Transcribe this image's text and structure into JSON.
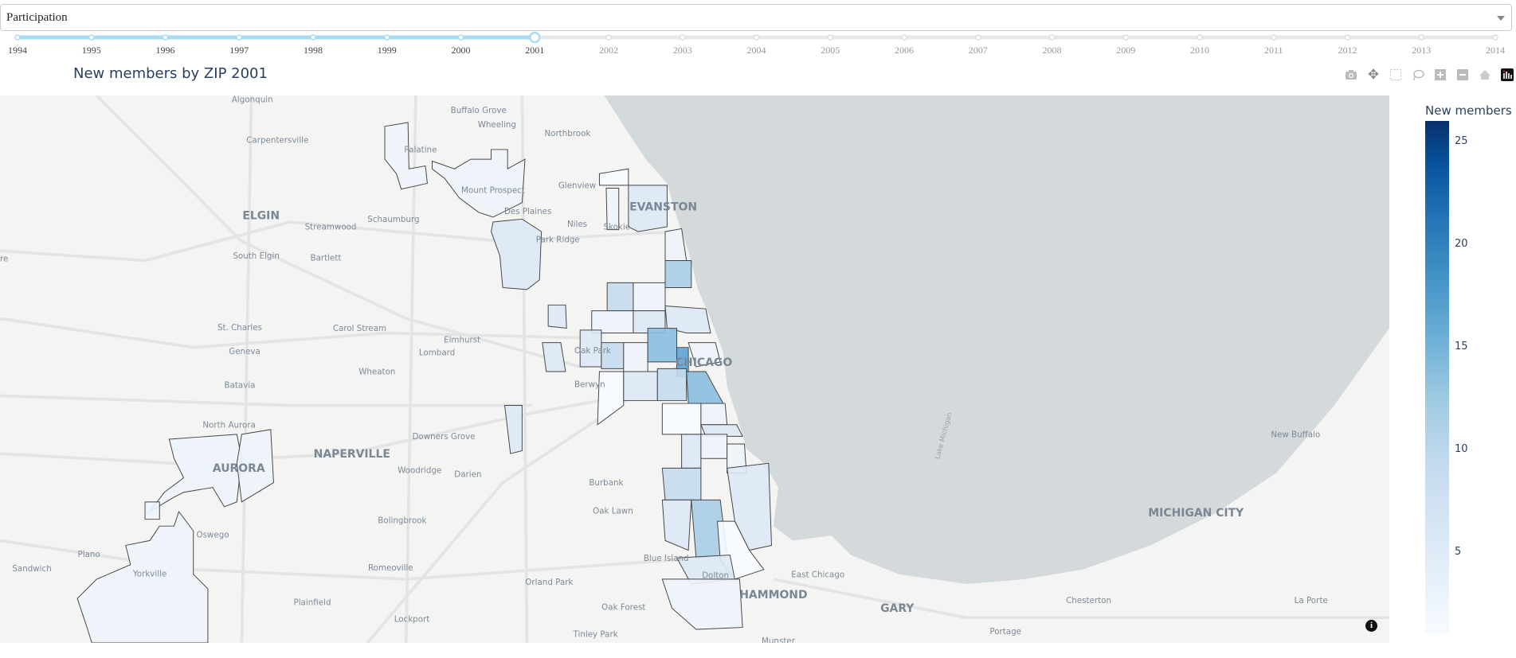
{
  "dropdown": {
    "selected": "Participation"
  },
  "slider": {
    "years": [
      "1994",
      "1995",
      "1996",
      "1997",
      "1998",
      "1999",
      "2000",
      "2001",
      "2002",
      "2003",
      "2004",
      "2005",
      "2006",
      "2007",
      "2008",
      "2009",
      "2010",
      "2011",
      "2012",
      "2013",
      "2014"
    ],
    "active": "2001",
    "active_color": "#a8dcf5",
    "track_color": "#e8e8e8"
  },
  "chart_title": "New members by ZIP 2001",
  "toolbar": [
    "camera-icon",
    "pan-icon",
    "box-select-icon",
    "lasso-icon",
    "zoom-in-icon",
    "zoom-out-icon",
    "home-icon",
    "plotly-logo-icon"
  ],
  "colorbar": {
    "title": "New members",
    "ticks": [
      "25",
      "20",
      "15",
      "10",
      "5"
    ],
    "range": [
      1,
      26
    ],
    "colorscale": "Blues"
  },
  "chart_data": {
    "type": "choropleth-map",
    "title": "New members by ZIP 2001",
    "colorbar_title": "New members",
    "range": [
      1,
      26
    ]
  },
  "map": {
    "lake_label": "Lake Michigan",
    "land_color": "#f4f4f3",
    "water_color": "#d4d9dc",
    "places": [
      {
        "name": "Algonquin",
        "big": false
      },
      {
        "name": "Buffalo Grove",
        "big": false
      },
      {
        "name": "Wheeling",
        "big": false
      },
      {
        "name": "Northbrook",
        "big": false
      },
      {
        "name": "Carpentersville",
        "big": false
      },
      {
        "name": "Palatine",
        "big": false
      },
      {
        "name": "Glenview",
        "big": false
      },
      {
        "name": "Mount Prospect",
        "big": false
      },
      {
        "name": "EVANSTON",
        "big": true
      },
      {
        "name": "Des Plaines",
        "big": false
      },
      {
        "name": "Niles",
        "big": false
      },
      {
        "name": "Skokie",
        "big": false
      },
      {
        "name": "ELGIN",
        "big": true
      },
      {
        "name": "Streamwood",
        "big": false
      },
      {
        "name": "Schaumburg",
        "big": false
      },
      {
        "name": "Park Ridge",
        "big": false
      },
      {
        "name": "South Elgin",
        "big": false
      },
      {
        "name": "Bartlett",
        "big": false
      },
      {
        "name": "St. Charles",
        "big": false
      },
      {
        "name": "Carol Stream",
        "big": false
      },
      {
        "name": "Elmhurst",
        "big": false
      },
      {
        "name": "Oak Park",
        "big": false
      },
      {
        "name": "Lombard",
        "big": false
      },
      {
        "name": "Geneva",
        "big": false
      },
      {
        "name": "CHICAGO",
        "big": true
      },
      {
        "name": "Wheaton",
        "big": false
      },
      {
        "name": "Berwyn",
        "big": false
      },
      {
        "name": "Batavia",
        "big": false
      },
      {
        "name": "North Aurora",
        "big": false
      },
      {
        "name": "Downers Grove",
        "big": false
      },
      {
        "name": "New Buffalo",
        "big": false
      },
      {
        "name": "NAPERVILLE",
        "big": true
      },
      {
        "name": "AURORA",
        "big": true
      },
      {
        "name": "Woodridge",
        "big": false
      },
      {
        "name": "Darien",
        "big": false
      },
      {
        "name": "Burbank",
        "big": false
      },
      {
        "name": "Oak Lawn",
        "big": false
      },
      {
        "name": "MICHIGAN CITY",
        "big": true
      },
      {
        "name": "Bolingbrook",
        "big": false
      },
      {
        "name": "Oswego",
        "big": false
      },
      {
        "name": "Plano",
        "big": false
      },
      {
        "name": "Blue Island",
        "big": false
      },
      {
        "name": "Sandwich",
        "big": false
      },
      {
        "name": "Romeoville",
        "big": false
      },
      {
        "name": "Yorkville",
        "big": false
      },
      {
        "name": "East Chicago",
        "big": false
      },
      {
        "name": "Dolton",
        "big": false
      },
      {
        "name": "Orland Park",
        "big": false
      },
      {
        "name": "HAMMOND",
        "big": true
      },
      {
        "name": "Chesterton",
        "big": false
      },
      {
        "name": "La Porte",
        "big": false
      },
      {
        "name": "Plainfield",
        "big": false
      },
      {
        "name": "Lockport",
        "big": false
      },
      {
        "name": "Oak Forest",
        "big": false
      },
      {
        "name": "GARY",
        "big": true
      },
      {
        "name": "Tinley Park",
        "big": false
      },
      {
        "name": "Portage",
        "big": false
      },
      {
        "name": "Munster",
        "big": false
      },
      {
        "name": "re",
        "big": false
      }
    ]
  }
}
